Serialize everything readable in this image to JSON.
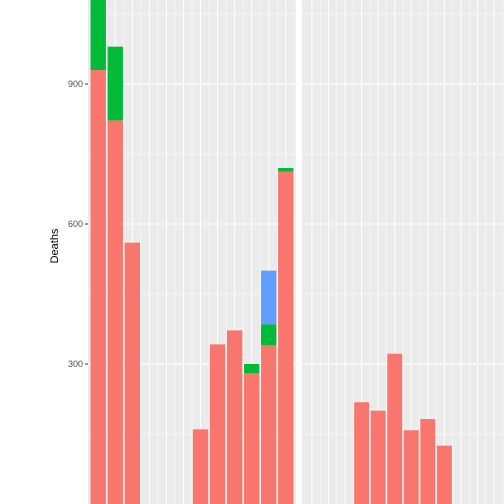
{
  "chart_data": {
    "type": "bar",
    "stacked": true,
    "ylabel": "Deaths",
    "xlabel": "",
    "title": "",
    "ylim": [
      0,
      1080
    ],
    "yticks": [
      300,
      600,
      900
    ],
    "ytick_labels": [
      "300",
      "600",
      "900"
    ],
    "grid": true,
    "panel_background": "#ebebeb",
    "grid_color": "#ffffff",
    "legend": "none",
    "panels": [
      {
        "x_range": [
          0.4,
          12.6
        ],
        "bars": [
          {
            "x": 1,
            "segments": [
              {
                "group": "red",
                "value": 930
              },
              {
                "group": "green",
                "value": 150
              }
            ]
          },
          {
            "x": 2,
            "segments": [
              {
                "group": "red",
                "value": 822
              },
              {
                "group": "green",
                "value": 158
              }
            ]
          },
          {
            "x": 3,
            "segments": [
              {
                "group": "red",
                "value": 560
              }
            ]
          },
          {
            "x": 7,
            "segments": [
              {
                "group": "red",
                "value": 160
              }
            ]
          },
          {
            "x": 8,
            "segments": [
              {
                "group": "red",
                "value": 342
              }
            ]
          },
          {
            "x": 9,
            "segments": [
              {
                "group": "red",
                "value": 372
              }
            ]
          },
          {
            "x": 10,
            "segments": [
              {
                "group": "red",
                "value": 280
              },
              {
                "group": "green",
                "value": 20
              }
            ]
          },
          {
            "x": 11,
            "segments": [
              {
                "group": "red",
                "value": 340
              },
              {
                "group": "green",
                "value": 45
              },
              {
                "group": "blue",
                "value": 115
              }
            ]
          },
          {
            "x": 12,
            "segments": [
              {
                "group": "red",
                "value": 712
              },
              {
                "group": "green",
                "value": 8
              }
            ]
          }
        ]
      },
      {
        "x_range": [
          0.4,
          12.6
        ],
        "bars": [
          {
            "x": 4,
            "segments": [
              {
                "group": "red",
                "value": 218
              }
            ]
          },
          {
            "x": 5,
            "segments": [
              {
                "group": "red",
                "value": 200
              }
            ]
          },
          {
            "x": 6,
            "segments": [
              {
                "group": "red",
                "value": 322
              }
            ]
          },
          {
            "x": 7,
            "segments": [
              {
                "group": "red",
                "value": 158
              }
            ]
          },
          {
            "x": 8,
            "segments": [
              {
                "group": "red",
                "value": 182
              }
            ]
          },
          {
            "x": 9,
            "segments": [
              {
                "group": "red",
                "value": 125
              }
            ]
          }
        ]
      }
    ],
    "colors": {
      "red": "#F8766D",
      "green": "#00BA38",
      "blue": "#619CFF"
    }
  }
}
